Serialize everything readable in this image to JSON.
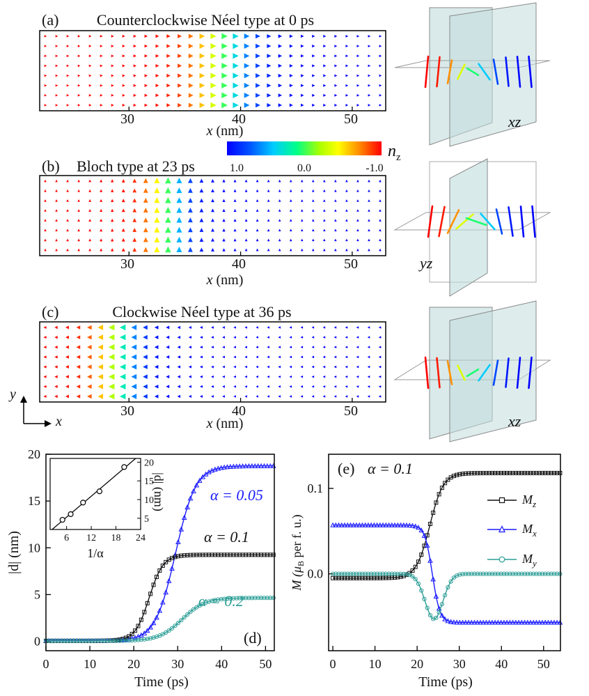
{
  "chart_data": [
    {
      "id": "a",
      "type": "vector_field",
      "panel_label": "(a)",
      "title": "Counterclockwise Néel type at 0 ps",
      "xlabel": "x (nm)",
      "xlim": [
        22,
        53
      ],
      "xticks": [
        30,
        40,
        50
      ],
      "wall_center_nm": 38.5,
      "wall_width_nm": 6.0,
      "sense": 1,
      "wall_type": "neel",
      "side_view": {
        "plane_label": "xz"
      }
    },
    {
      "id": "b",
      "type": "vector_field",
      "panel_label": "(b)",
      "title": "Bloch type at 23 ps",
      "xlabel": "x (nm)",
      "xlim": [
        22,
        53
      ],
      "xticks": [
        30,
        40,
        50
      ],
      "wall_center_nm": 33.5,
      "wall_width_nm": 4.0,
      "sense": 1,
      "wall_type": "bloch",
      "side_view": {
        "plane_label": "yz"
      }
    },
    {
      "id": "c",
      "type": "vector_field",
      "panel_label": "(c)",
      "title": "Clockwise Néel type at 36 ps",
      "xlabel": "x (nm)",
      "xlim": [
        22,
        53
      ],
      "xticks": [
        30,
        40,
        50
      ],
      "wall_center_nm": 29.0,
      "wall_width_nm": 4.5,
      "sense": -1,
      "wall_type": "neel",
      "side_view": {
        "plane_label": "xz"
      }
    },
    {
      "id": "colorbar",
      "type": "colorbar",
      "label_main": "n",
      "label_sub": "z",
      "ticks": [
        "1.0",
        "0.0",
        "-1.0"
      ],
      "range": [
        1.0,
        -1.0
      ]
    },
    {
      "id": "d",
      "type": "line",
      "panel_label": "(d)",
      "xlabel": "Time (ps)",
      "ylabel": "|d| (nm)",
      "xlim": [
        0,
        52
      ],
      "ylim": [
        -1,
        20
      ],
      "xticks": [
        0,
        10,
        20,
        30,
        40,
        50
      ],
      "yticks": [
        0,
        5,
        10,
        15,
        20
      ],
      "series": [
        {
          "name": "α = 0.05",
          "color": "#1a1aff",
          "marker": "triangle",
          "final": 18.7,
          "t0": 29.5,
          "tau": 2.3
        },
        {
          "name": "α = 0.1",
          "color": "#111111",
          "marker": "square",
          "final": 9.2,
          "t0": 23.5,
          "tau": 1.6
        },
        {
          "name": "α = 0.2",
          "color": "#2a9d95",
          "marker": "circle",
          "final": 4.6,
          "t0": 31.0,
          "tau": 2.6
        }
      ],
      "inset": {
        "xlabel": "1/α",
        "ylabel": "|d| (nm)",
        "xlim": [
          2,
          24
        ],
        "ylim": [
          2,
          21
        ],
        "xticks": [
          6,
          12,
          18,
          24
        ],
        "yticks": [
          5,
          10,
          15,
          20
        ],
        "points": [
          [
            5,
            4.6
          ],
          [
            7,
            6.1
          ],
          [
            10,
            9.2
          ],
          [
            14,
            12.2
          ],
          [
            20,
            18.7
          ]
        ]
      }
    },
    {
      "id": "e",
      "type": "line",
      "panel_label": "(e)",
      "annotation": "α = 0.1",
      "xlabel": "Time (ps)",
      "ylabel_main": "M (μ",
      "ylabel_sub": "B",
      "ylabel_tail": " per f. u.)",
      "xlim": [
        -1,
        54
      ],
      "ylim": [
        -0.09,
        0.14
      ],
      "xticks": [
        0,
        10,
        20,
        30,
        40,
        50
      ],
      "yticks": [
        0.0,
        0.1
      ],
      "ytick_labels": [
        "0.0",
        "0.1"
      ],
      "series": [
        {
          "name": "M",
          "sub": "z",
          "color": "#111111",
          "marker": "square"
        },
        {
          "name": "M",
          "sub": "x",
          "color": "#1a1aff",
          "marker": "triangle"
        },
        {
          "name": "M",
          "sub": "y",
          "color": "#2a9d95",
          "marker": "circle"
        }
      ],
      "curves": {
        "Mz": {
          "start": -0.005,
          "end": 0.118,
          "t0": 23.0,
          "tau": 1.6
        },
        "Mx": {
          "start": 0.057,
          "end": -0.057,
          "t0": 23.6,
          "tau": 0.9
        },
        "My": {
          "base": 0.0,
          "dip": -0.053,
          "t0": 24.0,
          "sigma": 3.0
        }
      }
    }
  ],
  "axis_indicator": {
    "y": "y",
    "x": "x"
  }
}
